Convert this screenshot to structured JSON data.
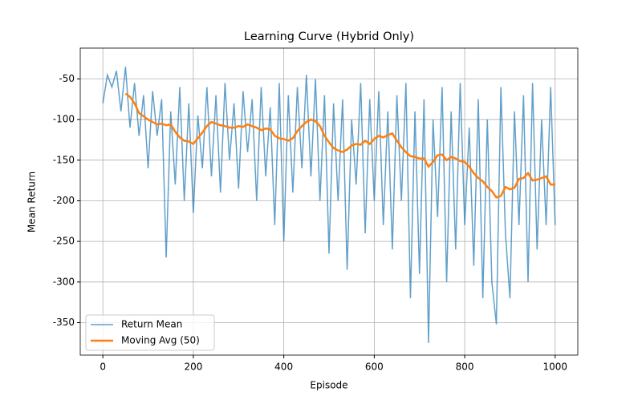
{
  "chart_data": {
    "type": "line",
    "title": "Learning Curve (Hybrid Only)",
    "x_label": "Episode",
    "y_label": "Mean Return",
    "xlim": [
      -50,
      1050
    ],
    "ylim": [
      -390,
      -12
    ],
    "xticks": [
      0,
      200,
      400,
      600,
      800,
      1000
    ],
    "yticks": [
      -50,
      -100,
      -150,
      -200,
      -250,
      -300,
      -350
    ],
    "grid": true,
    "legend": "lower left",
    "series": [
      {
        "name": "Return Mean",
        "color": "#1f77b4",
        "opacity": 0.7,
        "width": 1.5,
        "x": [
          0,
          10,
          20,
          30,
          40,
          50,
          60,
          70,
          80,
          90,
          100,
          110,
          120,
          130,
          140,
          150,
          160,
          170,
          180,
          190,
          200,
          210,
          220,
          230,
          240,
          250,
          260,
          270,
          280,
          290,
          300,
          310,
          320,
          330,
          340,
          350,
          360,
          370,
          380,
          390,
          400,
          410,
          420,
          430,
          440,
          450,
          460,
          470,
          480,
          490,
          500,
          510,
          520,
          530,
          540,
          550,
          560,
          570,
          580,
          590,
          600,
          610,
          620,
          630,
          640,
          650,
          660,
          670,
          680,
          690,
          700,
          710,
          720,
          730,
          740,
          750,
          760,
          770,
          780,
          790,
          800,
          810,
          820,
          830,
          840,
          850,
          860,
          870,
          880,
          890,
          900,
          910,
          920,
          930,
          940,
          950,
          960,
          970,
          980,
          990,
          1000
        ],
        "values": [
          -80,
          -45,
          -60,
          -40,
          -90,
          -35,
          -110,
          -55,
          -120,
          -70,
          -160,
          -65,
          -120,
          -75,
          -270,
          -90,
          -180,
          -60,
          -200,
          -80,
          -215,
          -95,
          -160,
          -60,
          -170,
          -70,
          -190,
          -55,
          -150,
          -80,
          -185,
          -65,
          -140,
          -75,
          -200,
          -60,
          -170,
          -85,
          -230,
          -55,
          -250,
          -70,
          -190,
          -60,
          -160,
          -45,
          -170,
          -50,
          -200,
          -70,
          -265,
          -80,
          -200,
          -75,
          -285,
          -100,
          -180,
          -55,
          -240,
          -75,
          -200,
          -65,
          -230,
          -90,
          -260,
          -70,
          -200,
          -55,
          -320,
          -90,
          -290,
          -75,
          -375,
          -100,
          -220,
          -60,
          -300,
          -90,
          -260,
          -55,
          -230,
          -110,
          -280,
          -75,
          -320,
          -100,
          -300,
          -352,
          -60,
          -240,
          -320,
          -90,
          -230,
          -70,
          -300,
          -55,
          -260,
          -100,
          -230,
          -60,
          -230
        ]
      },
      {
        "name": "Moving Avg (50)",
        "color": "#ff7f0e",
        "opacity": 1,
        "width": 2.5,
        "x": [
          50,
          60,
          70,
          80,
          90,
          100,
          110,
          120,
          130,
          140,
          150,
          160,
          170,
          180,
          190,
          200,
          210,
          220,
          230,
          240,
          250,
          260,
          270,
          280,
          290,
          300,
          310,
          320,
          330,
          340,
          350,
          360,
          370,
          380,
          390,
          400,
          410,
          420,
          430,
          440,
          450,
          460,
          470,
          480,
          490,
          500,
          510,
          520,
          530,
          540,
          550,
          560,
          570,
          580,
          590,
          600,
          610,
          620,
          630,
          640,
          650,
          660,
          670,
          680,
          690,
          700,
          710,
          720,
          730,
          740,
          750,
          760,
          770,
          780,
          790,
          800,
          810,
          820,
          830,
          840,
          850,
          860,
          870,
          880,
          890,
          900,
          910,
          920,
          930,
          940,
          950,
          960,
          970,
          980,
          990,
          1000
        ],
        "values": [
          -68,
          -72,
          -80,
          -92,
          -96,
          -100,
          -103,
          -106,
          -105,
          -107,
          -106,
          -115,
          -122,
          -126,
          -127,
          -130,
          -123,
          -116,
          -108,
          -103,
          -105,
          -107,
          -108,
          -110,
          -110,
          -108,
          -109,
          -106,
          -108,
          -110,
          -113,
          -111,
          -112,
          -120,
          -123,
          -124,
          -126,
          -123,
          -114,
          -108,
          -103,
          -100,
          -102,
          -108,
          -120,
          -128,
          -135,
          -138,
          -140,
          -137,
          -132,
          -130,
          -131,
          -126,
          -130,
          -124,
          -120,
          -122,
          -119,
          -117,
          -126,
          -134,
          -140,
          -145,
          -146,
          -148,
          -148,
          -158,
          -152,
          -144,
          -143,
          -150,
          -146,
          -148,
          -151,
          -152,
          -158,
          -166,
          -172,
          -176,
          -183,
          -188,
          -196,
          -194,
          -183,
          -186,
          -184,
          -173,
          -172,
          -166,
          -175,
          -174,
          -172,
          -170,
          -180,
          -180
        ]
      }
    ]
  }
}
